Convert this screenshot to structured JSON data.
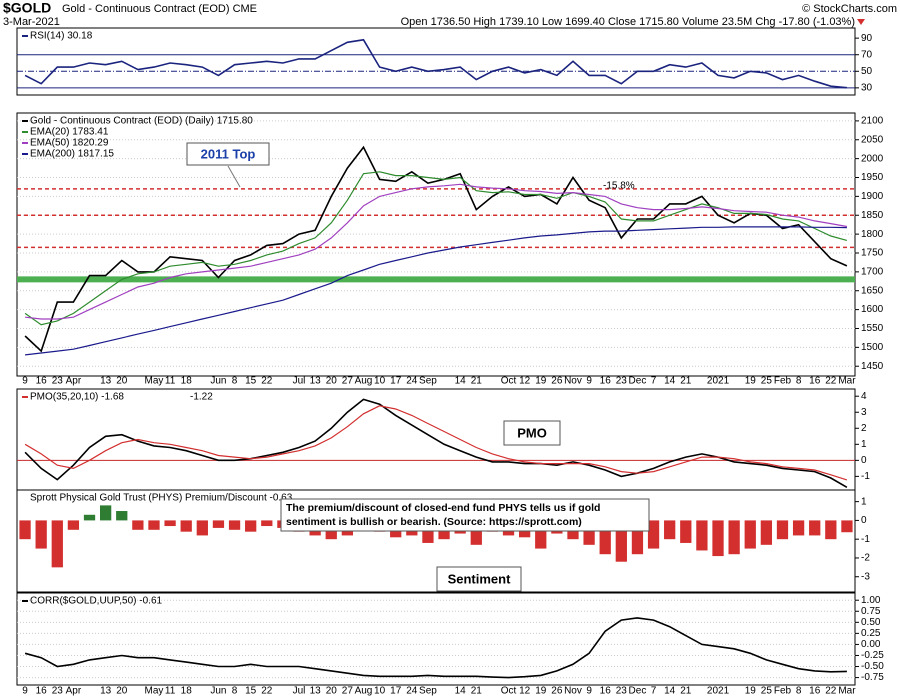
{
  "header": {
    "symbol": "$GOLD",
    "name": "Gold - Continuous Contract (EOD) CME",
    "date": "3-Mar-2021",
    "quote": "Open 1736.50  High 1739.10  Low 1699.40  Close 1715.80  Volume 23.5M  Chg -17.80 (-1.03%)",
    "credit": "© StockCharts.com"
  },
  "chart_data": [
    {
      "type": "line",
      "ylim": [
        25,
        95
      ],
      "yticks": [
        30,
        50,
        70,
        90
      ],
      "hlines": [
        30,
        50,
        70
      ],
      "grid": false,
      "series": [
        {
          "name": "RSI(14) 30.18",
          "color": "#1a237e",
          "values": [
            45,
            35,
            55,
            55,
            60,
            58,
            62,
            52,
            55,
            60,
            58,
            55,
            45,
            58,
            60,
            62,
            60,
            65,
            65,
            75,
            85,
            88,
            55,
            50,
            55,
            50,
            52,
            55,
            40,
            50,
            55,
            48,
            52,
            45,
            62,
            45,
            45,
            35,
            50,
            50,
            58,
            55,
            60,
            45,
            42,
            50,
            48,
            40,
            45,
            38,
            32,
            30.18
          ]
        }
      ]
    },
    {
      "type": "line",
      "ylim": [
        1440,
        2105
      ],
      "grid": true,
      "yticks": [
        1450,
        1500,
        1550,
        1600,
        1650,
        1700,
        1750,
        1800,
        1850,
        1900,
        1950,
        2000,
        2050,
        2100
      ],
      "categories": [
        "9",
        "16",
        "23",
        "Apr",
        null,
        "13",
        "20",
        null,
        "May",
        "11",
        "18",
        null,
        "Jun",
        "8",
        "15",
        "22",
        null,
        "Jul",
        "13",
        "20",
        "27",
        "Aug",
        "10",
        "17",
        "24",
        "Sep",
        null,
        "14",
        "21",
        null,
        "Oct",
        "12",
        "19",
        "26",
        "Nov",
        "9",
        "16",
        "23",
        "Dec",
        "7",
        "14",
        "21",
        null,
        "2021",
        null,
        "19",
        "25",
        "Feb",
        "8",
        "16",
        "22",
        "Mar"
      ],
      "levels": [
        1920,
        1850,
        1765
      ],
      "level_color": "#d32f2f",
      "support": 1680,
      "support_color": "#4caf50",
      "annotations": [
        "2011 Top",
        "-15.8%"
      ],
      "series": [
        {
          "name": "Gold - Continuous Contract (EOD) (Daily) 1715.80",
          "color": "#000000",
          "values": [
            1530,
            1490,
            1620,
            1620,
            1690,
            1690,
            1730,
            1700,
            1700,
            1740,
            1735,
            1730,
            1685,
            1730,
            1745,
            1770,
            1775,
            1800,
            1810,
            1900,
            1975,
            2030,
            1945,
            1940,
            1965,
            1935,
            1945,
            1960,
            1865,
            1900,
            1925,
            1900,
            1905,
            1880,
            1950,
            1890,
            1870,
            1790,
            1840,
            1840,
            1880,
            1880,
            1900,
            1850,
            1830,
            1855,
            1850,
            1815,
            1825,
            1780,
            1735,
            1715.8
          ]
        },
        {
          "name": "EMA(20) 1783.41",
          "color": "#2e8b2e",
          "values": [
            1590,
            1560,
            1570,
            1590,
            1620,
            1650,
            1680,
            1695,
            1700,
            1715,
            1720,
            1725,
            1715,
            1720,
            1730,
            1745,
            1755,
            1775,
            1790,
            1830,
            1890,
            1960,
            1965,
            1955,
            1955,
            1950,
            1945,
            1950,
            1915,
            1910,
            1912,
            1905,
            1905,
            1895,
            1910,
            1900,
            1885,
            1840,
            1835,
            1835,
            1850,
            1865,
            1880,
            1870,
            1855,
            1855,
            1852,
            1840,
            1835,
            1815,
            1795,
            1783.41
          ]
        },
        {
          "name": "EMA(50) 1820.29",
          "color": "#a040c0",
          "values": [
            1580,
            1575,
            1575,
            1580,
            1600,
            1620,
            1640,
            1660,
            1670,
            1685,
            1695,
            1700,
            1705,
            1710,
            1715,
            1725,
            1735,
            1745,
            1760,
            1790,
            1830,
            1875,
            1900,
            1910,
            1920,
            1925,
            1928,
            1932,
            1925,
            1922,
            1920,
            1915,
            1913,
            1908,
            1910,
            1905,
            1900,
            1880,
            1870,
            1865,
            1865,
            1868,
            1872,
            1868,
            1862,
            1860,
            1858,
            1850,
            1845,
            1835,
            1828,
            1820.29
          ]
        },
        {
          "name": "EMA(200) 1817.15",
          "color": "#1a1a8c",
          "values": [
            1480,
            1485,
            1490,
            1495,
            1505,
            1515,
            1525,
            1535,
            1545,
            1555,
            1565,
            1575,
            1585,
            1595,
            1605,
            1615,
            1625,
            1640,
            1655,
            1670,
            1690,
            1705,
            1720,
            1730,
            1740,
            1750,
            1758,
            1766,
            1772,
            1778,
            1784,
            1790,
            1795,
            1798,
            1802,
            1806,
            1808,
            1808,
            1810,
            1812,
            1814,
            1816,
            1818,
            1818,
            1819,
            1819,
            1819,
            1819,
            1819,
            1818,
            1818,
            1817.15
          ]
        }
      ]
    },
    {
      "type": "line",
      "ylim": [
        -1.6,
        4.2
      ],
      "yticks": [
        -1,
        0,
        1,
        2,
        3,
        4
      ],
      "hlines": [
        0
      ],
      "grid": false,
      "annotations": [
        "PMO"
      ],
      "series": [
        {
          "name": "PMO(35,20,10) -1.68",
          "color": "#000000",
          "values": [
            0.5,
            -0.5,
            -1.2,
            -0.3,
            0.8,
            1.5,
            1.6,
            1.2,
            0.9,
            0.8,
            0.6,
            0.3,
            0.0,
            0.0,
            0.1,
            0.3,
            0.5,
            0.8,
            1.2,
            2.0,
            3.0,
            3.8,
            3.5,
            2.8,
            2.2,
            1.6,
            1.0,
            0.6,
            0.2,
            -0.1,
            -0.1,
            -0.2,
            -0.2,
            -0.3,
            -0.1,
            -0.3,
            -0.6,
            -1.0,
            -0.8,
            -0.5,
            -0.1,
            0.2,
            0.4,
            0.2,
            -0.1,
            -0.2,
            -0.3,
            -0.5,
            -0.6,
            -0.7,
            -1.1,
            -1.68
          ]
        },
        {
          "name": "-1.22",
          "color": "#d32f2f",
          "values": [
            1.0,
            0.4,
            -0.3,
            -0.5,
            0.0,
            0.6,
            1.1,
            1.3,
            1.1,
            1.0,
            0.8,
            0.6,
            0.3,
            0.2,
            0.1,
            0.2,
            0.4,
            0.6,
            0.9,
            1.4,
            2.1,
            2.9,
            3.4,
            3.2,
            2.8,
            2.3,
            1.8,
            1.3,
            0.8,
            0.4,
            0.1,
            -0.1,
            -0.2,
            -0.2,
            -0.2,
            -0.2,
            -0.4,
            -0.7,
            -0.8,
            -0.7,
            -0.4,
            -0.1,
            0.2,
            0.2,
            0.1,
            -0.1,
            -0.2,
            -0.4,
            -0.5,
            -0.6,
            -0.9,
            -1.22
          ]
        }
      ]
    },
    {
      "type": "bar",
      "ylim": [
        -3.6,
        1.3
      ],
      "yticks": [
        -3,
        -2,
        -1,
        0,
        1
      ],
      "grid": false,
      "pos_color": "#2e7d32",
      "neg_color": "#d32f2f",
      "annotations": [
        "Sentiment"
      ],
      "note": [
        "The premium/discount of closed-end fund PHYS tells us if gold",
        "sentiment is bullish or bearish. (Source: https://sprott.com)"
      ],
      "series": [
        {
          "name": "Sprott Physical Gold Trust (PHYS) Premium/Discount -0.63",
          "values": [
            -1.0,
            -1.5,
            -2.5,
            -0.5,
            0.3,
            0.8,
            0.5,
            -0.5,
            -0.5,
            -0.3,
            -0.6,
            -0.8,
            -0.4,
            -0.5,
            -0.6,
            -0.3,
            -0.4,
            -0.6,
            -0.8,
            -1.0,
            -0.8,
            -0.5,
            -0.6,
            -0.9,
            -0.8,
            -1.2,
            -1.0,
            -0.7,
            -1.3,
            -0.6,
            -0.8,
            -0.9,
            -1.5,
            -0.7,
            -1.0,
            -1.3,
            -1.8,
            -2.2,
            -1.8,
            -1.5,
            -1.0,
            -1.2,
            -1.6,
            -1.9,
            -1.8,
            -1.5,
            -1.3,
            -1.0,
            -0.8,
            -0.8,
            -1.0,
            -0.63
          ]
        }
      ]
    },
    {
      "type": "line",
      "ylim": [
        -0.85,
        1.05
      ],
      "grid": true,
      "yticks": [
        {
          "value": 1,
          "label": "1.00"
        },
        {
          "value": 0.75,
          "label": "0.75"
        },
        {
          "value": 0.5,
          "label": "0.50"
        },
        {
          "value": 0.25,
          "label": "0.25"
        },
        {
          "value": 0,
          "label": "0.00"
        },
        {
          "value": -0.25,
          "label": "-0.25"
        },
        {
          "value": -0.5,
          "label": "-0.50"
        },
        {
          "value": -0.75,
          "label": "-0.75"
        }
      ],
      "categories": [
        "9",
        "16",
        "23",
        "Apr",
        null,
        "13",
        "20",
        null,
        "May",
        "11",
        "18",
        null,
        "Jun",
        "8",
        "15",
        "22",
        null,
        "Jul",
        "13",
        "20",
        "27",
        "Aug",
        "10",
        "17",
        "24",
        "Sep",
        null,
        "14",
        "21",
        null,
        "Oct",
        "12",
        "19",
        "26",
        "Nov",
        "9",
        "16",
        "23",
        "Dec",
        "7",
        "14",
        "21",
        null,
        "2021",
        null,
        "19",
        "25",
        "Feb",
        "8",
        "16",
        "22",
        "Mar"
      ],
      "series": [
        {
          "name": "CORR($GOLD,UUP,50) -0.61",
          "color": "#000000",
          "values": [
            -0.2,
            -0.3,
            -0.5,
            -0.45,
            -0.35,
            -0.3,
            -0.25,
            -0.3,
            -0.3,
            -0.35,
            -0.4,
            -0.45,
            -0.5,
            -0.5,
            -0.45,
            -0.5,
            -0.5,
            -0.5,
            -0.55,
            -0.6,
            -0.65,
            -0.7,
            -0.72,
            -0.72,
            -0.72,
            -0.7,
            -0.72,
            -0.72,
            -0.72,
            -0.74,
            -0.75,
            -0.73,
            -0.7,
            -0.6,
            -0.45,
            -0.2,
            0.3,
            0.55,
            0.6,
            0.55,
            0.4,
            0.2,
            0.0,
            -0.05,
            -0.1,
            -0.2,
            -0.35,
            -0.45,
            -0.55,
            -0.6,
            -0.62,
            -0.61
          ]
        }
      ]
    }
  ]
}
